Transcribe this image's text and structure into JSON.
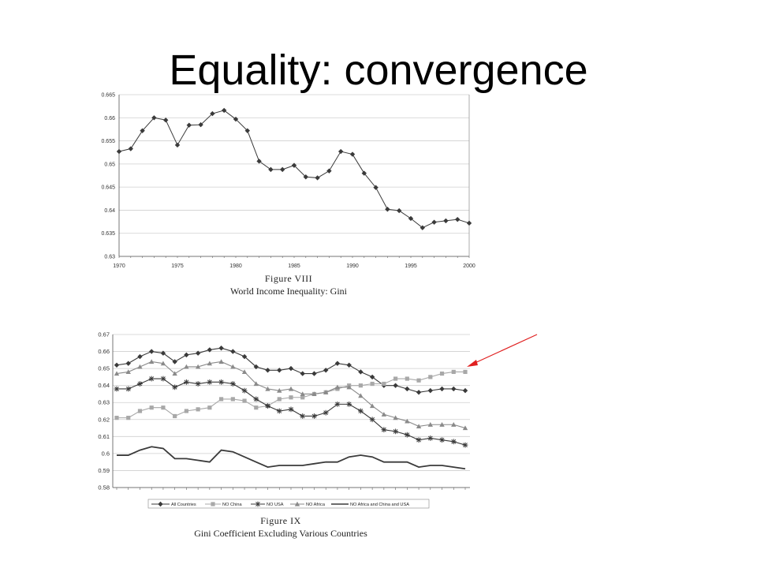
{
  "slide": {
    "title": "Equality: convergence"
  },
  "chart_data": [
    {
      "type": "line",
      "figure_label": "Figure VIII",
      "title": "World Income Inequality: Gini",
      "xlabel": "",
      "ylabel": "",
      "xlim": [
        1970,
        2000
      ],
      "ylim": [
        0.63,
        0.665
      ],
      "x_ticks": [
        "1970",
        "1975",
        "1980",
        "1985",
        "1990",
        "1995",
        "2000"
      ],
      "y_ticks": [
        "0.63",
        "0.635",
        "0.64",
        "0.645",
        "0.65",
        "0.655",
        "0.66",
        "0.665"
      ],
      "grid": true,
      "x": [
        1970,
        1971,
        1972,
        1973,
        1974,
        1975,
        1976,
        1977,
        1978,
        1979,
        1980,
        1981,
        1982,
        1983,
        1984,
        1985,
        1986,
        1987,
        1988,
        1989,
        1990,
        1991,
        1992,
        1993,
        1994,
        1995,
        1996,
        1997,
        1998,
        1999,
        2000
      ],
      "series": [
        {
          "values": [
            0.6527,
            0.6533,
            0.6572,
            0.66,
            0.6595,
            0.6541,
            0.6584,
            0.6585,
            0.6609,
            0.6616,
            0.6597,
            0.6572,
            0.6506,
            0.6488,
            0.6488,
            0.6497,
            0.6472,
            0.647,
            0.6485,
            0.6527,
            0.6521,
            0.648,
            0.6449,
            0.6402,
            0.6399,
            0.6382,
            0.6362,
            0.6374,
            0.6377,
            0.638,
            0.6372
          ]
        }
      ]
    },
    {
      "type": "line",
      "figure_label": "Figure IX",
      "title": "Gini Coefficient Excluding Various Countries",
      "xlabel": "",
      "ylabel": "",
      "ylim": [
        0.58,
        0.67
      ],
      "y_ticks": [
        "0.67",
        "0.66",
        "0.65",
        "0.64",
        "0.63",
        "0.62",
        "0.61",
        "0.6",
        "0.59",
        "0.58"
      ],
      "grid": true,
      "legend": "bottom",
      "x": [
        1,
        2,
        3,
        4,
        5,
        6,
        7,
        8,
        9,
        10,
        11,
        12,
        13,
        14,
        15,
        16,
        17,
        18,
        19,
        20,
        21,
        22,
        23,
        24,
        25,
        26,
        27,
        28,
        29,
        30,
        31
      ],
      "series": [
        {
          "name": "All Countries",
          "values": [
            0.652,
            0.653,
            0.657,
            0.66,
            0.659,
            0.654,
            0.658,
            0.659,
            0.661,
            0.662,
            0.66,
            0.657,
            0.651,
            0.649,
            0.649,
            0.65,
            0.647,
            0.647,
            0.649,
            0.653,
            0.652,
            0.648,
            0.645,
            0.64,
            0.64,
            0.638,
            0.636,
            0.637,
            0.638,
            0.638,
            0.637
          ]
        },
        {
          "name": "NO China",
          "values": [
            0.621,
            0.621,
            0.625,
            0.627,
            0.627,
            0.622,
            0.625,
            0.626,
            0.627,
            0.632,
            0.632,
            0.631,
            0.627,
            0.628,
            0.632,
            0.633,
            0.633,
            0.635,
            0.636,
            0.638,
            0.64,
            0.64,
            0.641,
            0.641,
            0.644,
            0.644,
            0.643,
            0.645,
            0.647,
            0.648,
            0.648
          ]
        },
        {
          "name": "NO USA",
          "values": [
            0.638,
            0.638,
            0.641,
            0.644,
            0.644,
            0.639,
            0.642,
            0.641,
            0.642,
            0.642,
            0.641,
            0.637,
            0.632,
            0.628,
            0.625,
            0.626,
            0.622,
            0.622,
            0.624,
            0.629,
            0.629,
            0.625,
            0.62,
            0.614,
            0.613,
            0.611,
            0.608,
            0.609,
            0.608,
            0.607,
            0.605
          ]
        },
        {
          "name": "NO Africa",
          "values": [
            0.647,
            0.648,
            0.651,
            0.654,
            0.653,
            0.647,
            0.651,
            0.651,
            0.653,
            0.654,
            0.651,
            0.648,
            0.641,
            0.638,
            0.637,
            0.638,
            0.635,
            0.635,
            0.636,
            0.639,
            0.639,
            0.634,
            0.628,
            0.623,
            0.621,
            0.619,
            0.616,
            0.617,
            0.617,
            0.617,
            0.615
          ]
        },
        {
          "name": "NO Africa and China and USA",
          "values": [
            0.599,
            0.599,
            0.602,
            0.604,
            0.603,
            0.597,
            0.597,
            0.596,
            0.595,
            0.602,
            0.601,
            0.598,
            0.595,
            0.592,
            0.593,
            0.593,
            0.593,
            0.594,
            0.595,
            0.595,
            0.598,
            0.599,
            0.598,
            0.595,
            0.595,
            0.595,
            0.592,
            0.593,
            0.593,
            0.592,
            0.591
          ]
        }
      ]
    }
  ],
  "colors": {
    "line": "#3a3a3a",
    "grid": "#cfcfcf",
    "no_china": "#a8a8a8",
    "no_africa": "#8a8a8a",
    "arrow": "#e02020"
  }
}
